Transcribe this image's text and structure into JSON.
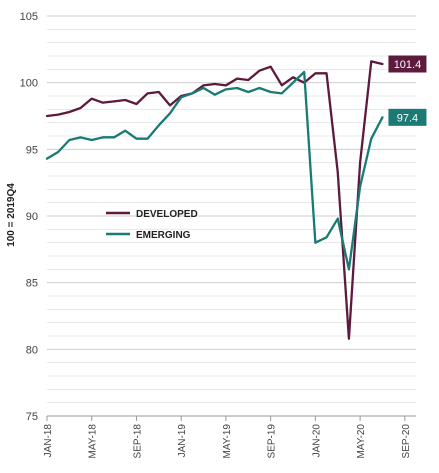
{
  "chart_data": {
    "type": "line",
    "ylabel": "100 = 2019Q4",
    "ylim": [
      75,
      105
    ],
    "yticks": [
      75,
      80,
      85,
      90,
      95,
      100,
      105
    ],
    "minor_grid_step": 1,
    "grid": true,
    "x": [
      "2018-01",
      "2018-02",
      "2018-03",
      "2018-04",
      "2018-05",
      "2018-06",
      "2018-07",
      "2018-08",
      "2018-09",
      "2018-10",
      "2018-11",
      "2018-12",
      "2019-01",
      "2019-02",
      "2019-03",
      "2019-04",
      "2019-05",
      "2019-06",
      "2019-07",
      "2019-08",
      "2019-09",
      "2019-10",
      "2019-11",
      "2019-12",
      "2020-01",
      "2020-02",
      "2020-03",
      "2020-04",
      "2020-05",
      "2020-06",
      "2020-07"
    ],
    "xtick_labels": [
      "JAN-18",
      "MAY-18",
      "SEP-18",
      "JAN-19",
      "MAY-19",
      "SEP-19",
      "JAN-20",
      "MAY-20",
      "SEP-20"
    ],
    "xtick_positions": [
      "2018-01",
      "2018-05",
      "2018-09",
      "2019-01",
      "2019-05",
      "2019-09",
      "2020-01",
      "2020-05",
      "2020-09"
    ],
    "xlim": [
      "2018-01",
      "2020-10"
    ],
    "legend_position": "lower-left",
    "series": [
      {
        "name": "DEVELOPED",
        "color": "#5c1a3c",
        "end_label": "101.4",
        "values": [
          97.5,
          97.6,
          97.8,
          98.1,
          98.8,
          98.5,
          98.6,
          98.7,
          98.4,
          99.2,
          99.3,
          98.3,
          99.0,
          99.2,
          99.8,
          99.9,
          99.8,
          100.3,
          100.2,
          100.9,
          101.2,
          99.8,
          100.4,
          100.0,
          100.7,
          100.7,
          93.3,
          80.8,
          94.0,
          101.6,
          101.4
        ]
      },
      {
        "name": "EMERGING",
        "color": "#1a7a74",
        "end_label": "97.4",
        "values": [
          94.3,
          94.8,
          95.7,
          95.9,
          95.7,
          95.9,
          95.9,
          96.4,
          95.8,
          95.8,
          96.8,
          97.7,
          98.9,
          99.2,
          99.6,
          99.1,
          99.5,
          99.6,
          99.3,
          99.6,
          99.3,
          99.2,
          100.0,
          100.8,
          88.0,
          88.4,
          89.8,
          86.0,
          92.2,
          95.8,
          97.4
        ]
      }
    ]
  }
}
